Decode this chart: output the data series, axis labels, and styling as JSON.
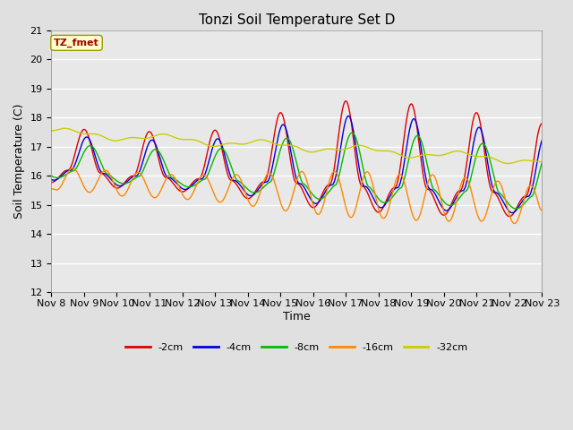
{
  "title": "Tonzi Soil Temperature Set D",
  "xlabel": "Time",
  "ylabel": "Soil Temperature (C)",
  "annotation": "TZ_fmet",
  "ylim": [
    12.0,
    21.0
  ],
  "yticks": [
    12.0,
    13.0,
    14.0,
    15.0,
    16.0,
    17.0,
    18.0,
    19.0,
    20.0,
    21.0
  ],
  "xtick_labels": [
    "Nov 8",
    "Nov 9",
    "Nov 10",
    "Nov 11",
    "Nov 12",
    "Nov 13",
    "Nov 14",
    "Nov 15",
    "Nov 16",
    "Nov 17",
    "Nov 18",
    "Nov 19",
    "Nov 20",
    "Nov 21",
    "Nov 22",
    "Nov 23"
  ],
  "line_colors": {
    "-2cm": "#dd0000",
    "-4cm": "#0000dd",
    "-8cm": "#00bb00",
    "-16cm": "#ff8800",
    "-32cm": "#cccc00"
  },
  "legend_labels": [
    "-2cm",
    "-4cm",
    "-8cm",
    "-16cm",
    "-32cm"
  ],
  "background_color": "#e0e0e0",
  "plot_bg_color": "#e8e8e8",
  "annotation_bg": "#ffffcc",
  "annotation_border": "#999900",
  "annotation_text_color": "#aa0000"
}
